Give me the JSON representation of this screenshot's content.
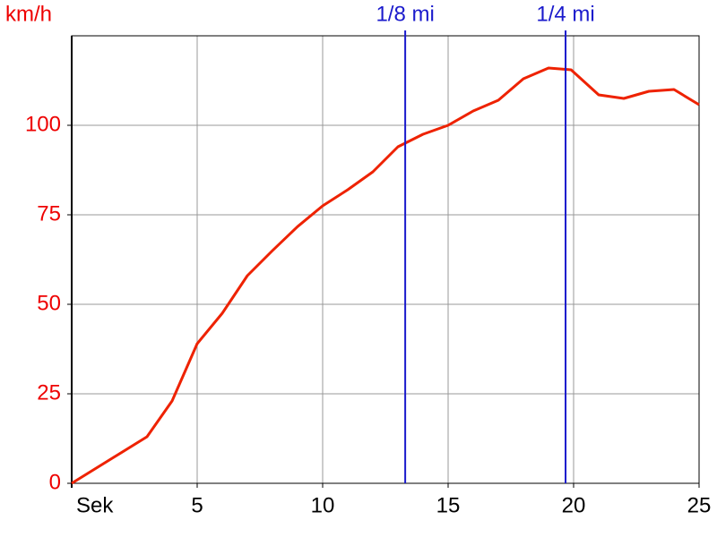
{
  "chart_data": {
    "type": "line",
    "y_label": "km/h",
    "x_label": "Sek",
    "x": [
      0,
      3,
      4,
      5,
      6,
      7,
      8,
      9,
      10,
      11,
      12,
      13,
      14,
      15,
      16,
      17,
      18,
      19,
      19.9,
      21,
      22,
      23,
      24,
      25
    ],
    "series": [
      {
        "name": "km/h",
        "color": "#ee2200",
        "values": [
          0,
          13,
          23,
          39,
          47.5,
          58,
          65,
          71.7,
          77.5,
          82,
          87,
          94,
          97.5,
          100,
          104,
          107,
          113,
          116,
          115.5,
          108.5,
          107.5,
          109.5,
          110,
          105.75
        ]
      }
    ],
    "xlim": [
      0,
      25
    ],
    "xticks": [
      5,
      10,
      15,
      20,
      25
    ],
    "ylim": [
      0,
      125
    ],
    "yticks": [
      0,
      25,
      50,
      75,
      100
    ],
    "grid": true,
    "axis_color": "#000000",
    "grid_color": "#999999",
    "y_label_color": "#ee0000",
    "markers": [
      {
        "label": "1/8 mi",
        "x": 13.29,
        "color": "#1a1acc"
      },
      {
        "label": "1/4 mi",
        "x": 19.68,
        "color": "#1a1acc"
      }
    ]
  }
}
